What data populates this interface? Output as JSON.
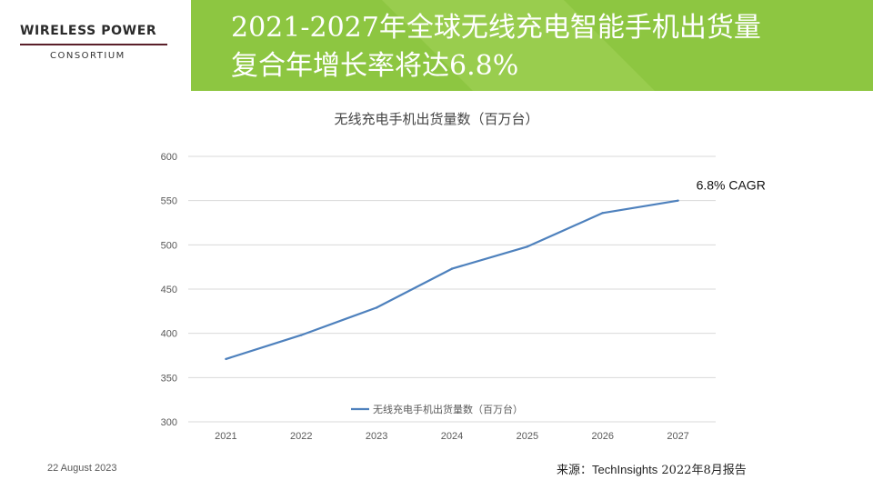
{
  "header": {
    "logo_title": "WIRELESS POWER",
    "logo_subtitle": "CONSORTIUM",
    "title_line1": "2021-2027年全球无线充电智能手机出货量",
    "title_line2": "复合年增长率将达6.8%"
  },
  "colors": {
    "header_green": "#8dc641",
    "line_blue": "#4e81bd",
    "logo_rule": "#5a1f2a"
  },
  "chart_data": {
    "type": "line",
    "title": "无线充电手机出货量数（百万台）",
    "categories": [
      "2021",
      "2022",
      "2023",
      "2024",
      "2025",
      "2026",
      "2027"
    ],
    "series": [
      {
        "name": "无线充电手机出货量数（百万台）",
        "values": [
          371,
          398,
          429,
          473,
          498,
          536,
          550
        ]
      }
    ],
    "ylim": [
      300,
      600
    ],
    "yticks": [
      300,
      350,
      400,
      450,
      500,
      550,
      600
    ],
    "grid": true,
    "legend": "bottom",
    "annotation": "6.8% CAGR"
  },
  "footer": {
    "date": "22 August 2023",
    "source_prefix": "来源：",
    "source_brand": "TechInsights",
    "source_suffix": " 2022年8月报告"
  }
}
